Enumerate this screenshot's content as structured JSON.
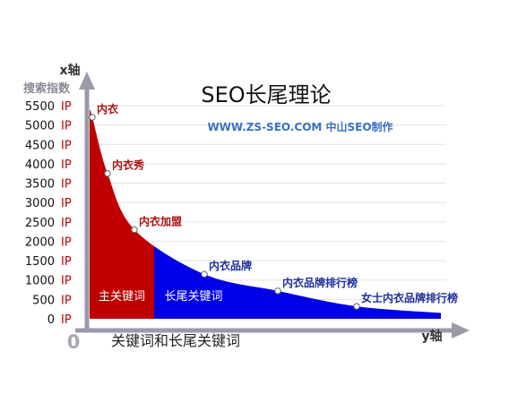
{
  "chart_data": {
    "type": "area",
    "title": "SEO长尾理论",
    "subtitle": "WWW.ZS-SEO.COM 中山SEO制作",
    "y_axis_name": "x轴",
    "y_axis_subtitle": "搜索指数",
    "x_axis_name": "y轴",
    "origin_label": "0",
    "bottom_caption": "关键词和长尾关键词",
    "y_ticks": [
      {
        "number": "5500",
        "unit": "IP"
      },
      {
        "number": "5000",
        "unit": "IP"
      },
      {
        "number": "4500",
        "unit": "IP"
      },
      {
        "number": "4000",
        "unit": "IP"
      },
      {
        "number": "3500",
        "unit": "IP"
      },
      {
        "number": "3000",
        "unit": "IP"
      },
      {
        "number": "2500",
        "unit": "IP"
      },
      {
        "number": "2000",
        "unit": "IP"
      },
      {
        "number": "1500",
        "unit": "IP"
      },
      {
        "number": "1000",
        "unit": "IP"
      },
      {
        "number": "500",
        "unit": "IP"
      },
      {
        "number": "0",
        "unit": "IP"
      }
    ],
    "y_values": [
      5500,
      5000,
      4500,
      4000,
      3500,
      3000,
      2500,
      2000,
      1500,
      1000,
      500,
      0
    ],
    "ylim": [
      0,
      5500
    ],
    "grid": true,
    "regions": [
      {
        "name": "主关键词",
        "color": "#c00000"
      },
      {
        "name": "长尾关键词",
        "color": "#0000e6"
      }
    ],
    "points": [
      {
        "label": "内衣",
        "value": 5200
      },
      {
        "label": "内衣秀",
        "value": 3750
      },
      {
        "label": "内衣加盟",
        "value": 2300
      },
      {
        "label": "内衣品牌",
        "value": 1150
      },
      {
        "label": "内衣品牌排行榜",
        "value": 720
      },
      {
        "label": "女士内衣品牌排行榜",
        "value": 320
      }
    ]
  },
  "colors": {
    "head": "#c00000",
    "tail": "#0000e6",
    "axis": "#9a9aa8",
    "label_red": "#aa1111",
    "label_blue": "#1d2f9a",
    "subtitle": "#3a6fc4"
  }
}
